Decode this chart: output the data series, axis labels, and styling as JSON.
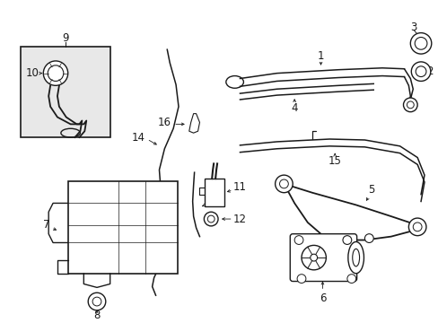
{
  "bg_color": "#ffffff",
  "line_color": "#1a1a1a",
  "fill_color": "#e8e8e8",
  "font_size": 8.5,
  "lw": 1.0
}
